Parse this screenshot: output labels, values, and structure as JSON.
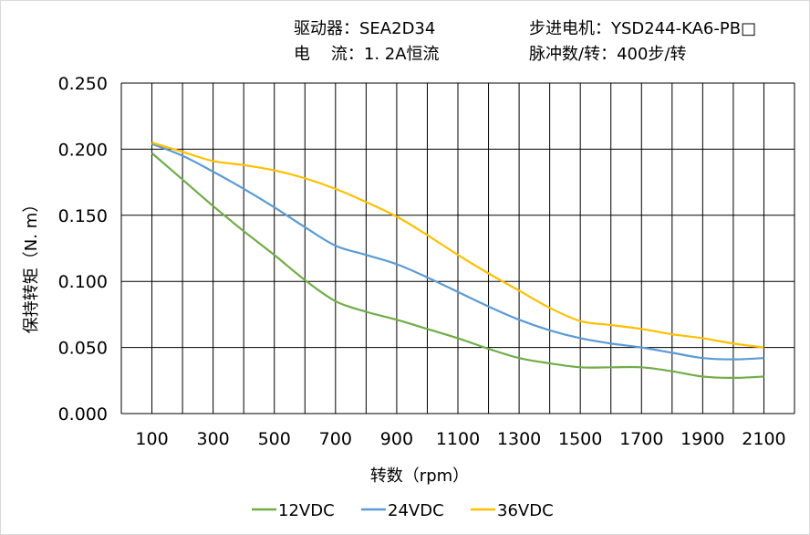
{
  "header": {
    "driver": "驱动器：SEA2D34",
    "current": "电    流：1. 2A恒流",
    "motor": "步进电机：YSD244-KA6-PB□",
    "pulses": "脉冲数/转：400步/转"
  },
  "chart_data": {
    "type": "line",
    "title": "",
    "xlabel": "转数（rpm）",
    "ylabel": "保持转矩（N. m）",
    "xlim": [
      0,
      2200
    ],
    "ylim": [
      0,
      0.25
    ],
    "grid": true,
    "legend_position": "bottom",
    "x_tick_labels": [
      "100",
      "300",
      "500",
      "700",
      "900",
      "1100",
      "1300",
      "1500",
      "1700",
      "1900",
      "2100"
    ],
    "y_tick_labels": [
      "0.000",
      "0.050",
      "0.100",
      "0.150",
      "0.200",
      "0.250"
    ],
    "x": [
      100,
      200,
      300,
      400,
      500,
      600,
      700,
      800,
      900,
      1000,
      1100,
      1200,
      1300,
      1400,
      1500,
      1600,
      1700,
      1800,
      1900,
      2000,
      2100
    ],
    "series": [
      {
        "name": "12VDC",
        "color": "#70ad47",
        "values": [
          0.197,
          0.177,
          0.157,
          0.138,
          0.12,
          0.101,
          0.085,
          0.077,
          0.071,
          0.064,
          0.057,
          0.049,
          0.042,
          0.038,
          0.035,
          0.035,
          0.035,
          0.032,
          0.028,
          0.027,
          0.028
        ]
      },
      {
        "name": "24VDC",
        "color": "#5b9bd5",
        "values": [
          0.204,
          0.195,
          0.183,
          0.17,
          0.156,
          0.141,
          0.127,
          0.12,
          0.113,
          0.103,
          0.092,
          0.081,
          0.071,
          0.063,
          0.057,
          0.053,
          0.05,
          0.046,
          0.042,
          0.041,
          0.042
        ]
      },
      {
        "name": "36VDC",
        "color": "#ffc000",
        "values": [
          0.205,
          0.198,
          0.191,
          0.188,
          0.184,
          0.178,
          0.17,
          0.16,
          0.149,
          0.135,
          0.12,
          0.106,
          0.093,
          0.08,
          0.07,
          0.067,
          0.064,
          0.06,
          0.057,
          0.053,
          0.05
        ]
      }
    ]
  }
}
